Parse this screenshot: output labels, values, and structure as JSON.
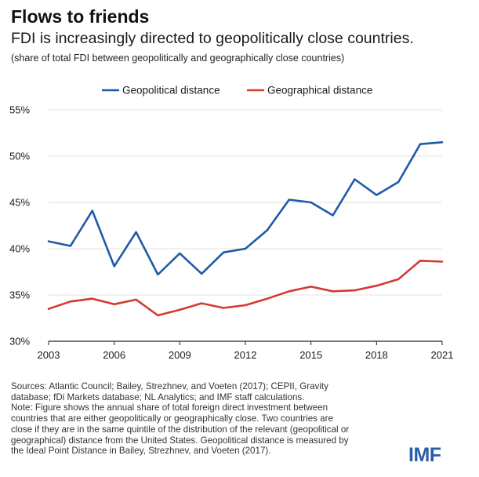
{
  "header": {
    "title": "Flows to friends",
    "subtitle": "FDI is increasingly directed to geopolitically close countries.",
    "note": "(share of total FDI between geopolitically and geographically close countries)"
  },
  "chart_data": {
    "type": "line",
    "title": "Flows to friends",
    "subtitle": "FDI is increasingly directed to geopolitically close countries.",
    "xlabel": "",
    "ylabel": "",
    "x": [
      2003,
      2004,
      2005,
      2006,
      2007,
      2008,
      2009,
      2010,
      2011,
      2012,
      2013,
      2014,
      2015,
      2016,
      2017,
      2018,
      2019,
      2020,
      2021
    ],
    "x_ticks": [
      "2003",
      "2006",
      "2009",
      "2012",
      "2015",
      "2018",
      "2021"
    ],
    "y_ticks": [
      "30%",
      "35%",
      "40%",
      "45%",
      "50%",
      "55%"
    ],
    "ylim": [
      30,
      55
    ],
    "xlim": [
      2003,
      2021
    ],
    "grid": true,
    "legend_position": "top",
    "series": [
      {
        "name": "Geopolitical distance",
        "color": "#1f5aa6",
        "values": [
          40.8,
          40.3,
          44.1,
          38.1,
          41.8,
          37.2,
          39.5,
          37.3,
          39.6,
          40.0,
          42.0,
          45.3,
          45.0,
          43.6,
          47.5,
          45.8,
          47.2,
          51.3,
          51.5
        ]
      },
      {
        "name": "Geographical distance",
        "color": "#d43a2f",
        "values": [
          33.5,
          34.3,
          34.6,
          34.0,
          34.5,
          32.8,
          33.4,
          34.1,
          33.6,
          33.9,
          34.6,
          35.4,
          35.9,
          35.4,
          35.5,
          36.0,
          36.7,
          38.7,
          38.6
        ]
      }
    ]
  },
  "footer": {
    "lines": [
      "Sources: Atlantic Council; Bailey, Strezhnev, and Voeten (2017); CEPII, Gravity",
      "database; fDi Markets database; NL Analytics; and IMF staff calculations.",
      "Note: Figure shows the annual share of total foreign direct investment between",
      "countries that are either geopolitically or geographically close. Two countries are",
      "close if they are in the same quintile of the distribution of the relevant (geopolitical or",
      "geographical) distance from the United States. Geopolitical distance is measured by",
      "the Ideal Point Distance in Bailey, Strezhnev, and Voeten (2017)."
    ]
  },
  "brand": {
    "logo_text": "IMF",
    "color": "#2a5caa"
  }
}
